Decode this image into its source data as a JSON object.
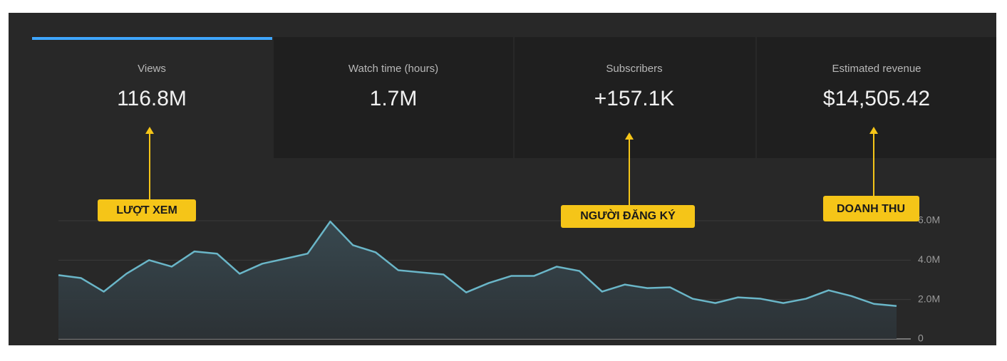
{
  "tabs": [
    {
      "label": "Views",
      "value": "116.8M"
    },
    {
      "label": "Watch time (hours)",
      "value": "1.7M"
    },
    {
      "label": "Subscribers",
      "value": "+157.1K"
    },
    {
      "label": "Estimated revenue",
      "value": "$14,505.42"
    }
  ],
  "annotations": [
    "LƯỢT XEM",
    "NGƯỜI ĐĂNG KÝ",
    "DOANH THU"
  ],
  "chart_data": {
    "type": "area",
    "values": [
      3240000,
      3090000,
      2400000,
      3310000,
      4000000,
      3670000,
      4440000,
      4330000,
      3310000,
      3820000,
      4070000,
      4330000,
      5960000,
      4760000,
      4400000,
      3490000,
      3380000,
      3270000,
      2360000,
      2840000,
      3200000,
      3200000,
      3670000,
      3450000,
      2400000,
      2760000,
      2580000,
      2620000,
      2040000,
      1820000,
      2110000,
      2040000,
      1820000,
      2040000,
      2470000,
      2180000,
      1780000,
      1670000
    ],
    "color": "#6ab6c8",
    "ylim": [
      0,
      6000000
    ],
    "yticks": [
      0,
      {
        "value": 2000000,
        "label": "2.0M"
      },
      {
        "value": 4000000,
        "label": "4.0M"
      },
      {
        "value": 6000000,
        "label": "6.0M"
      }
    ],
    "grid": true
  }
}
